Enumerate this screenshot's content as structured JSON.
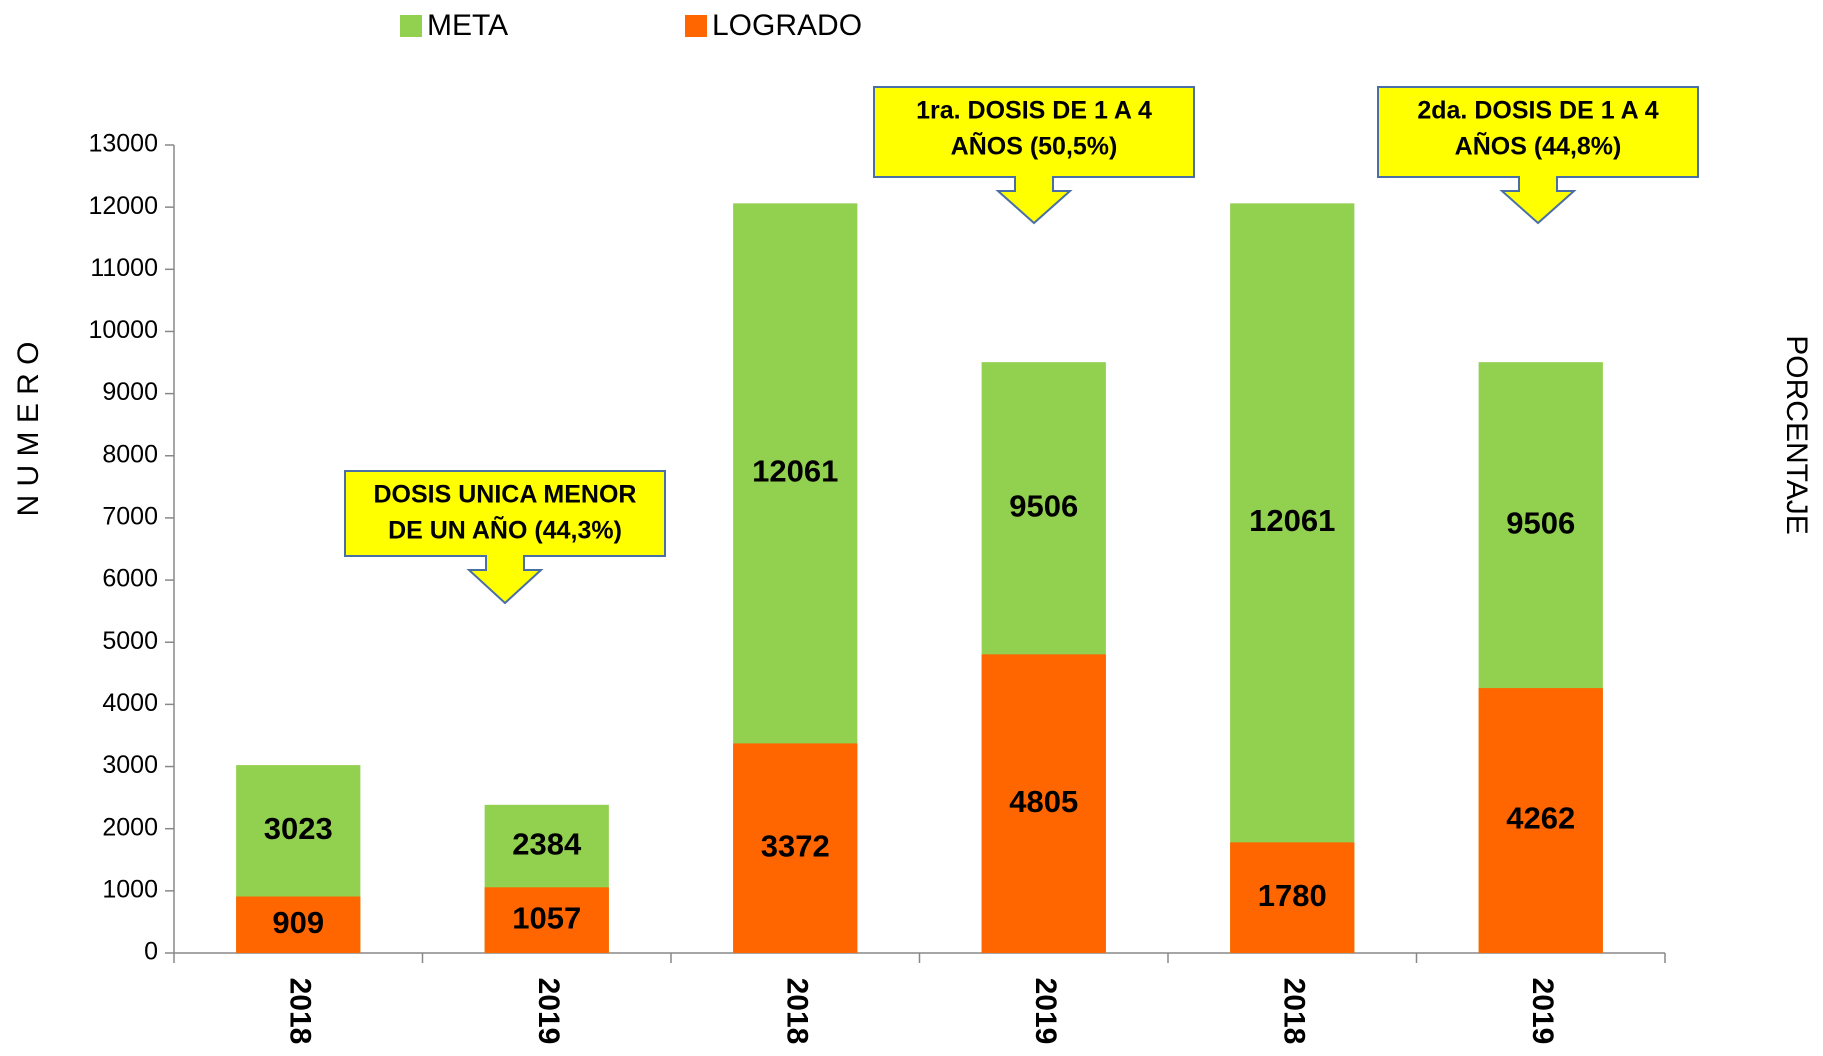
{
  "chart_data": {
    "type": "bar",
    "categories": [
      "2018",
      "2019",
      "2018",
      "2019",
      "2018",
      "2019"
    ],
    "series": [
      {
        "name": "META",
        "color": "#92d050",
        "values": [
          3023,
          2384,
          12061,
          9506,
          12061,
          9506
        ]
      },
      {
        "name": "LOGRADO",
        "color": "#ff6600",
        "values": [
          909,
          1057,
          3372,
          4805,
          1780,
          4262
        ]
      }
    ],
    "ylabel": "N U M E R O",
    "y2label": "PORCENTAJE",
    "ylim": [
      0,
      13000
    ],
    "yticks": [
      0,
      1000,
      2000,
      3000,
      4000,
      5000,
      6000,
      7000,
      8000,
      9000,
      10000,
      11000,
      12000,
      13000
    ],
    "legend": "top",
    "overlap": true,
    "annotations": [
      [
        "DOSIS UNICA MENOR",
        "DE UN AÑO (44,3%)"
      ],
      [
        "1ra. DOSIS DE 1 A 4",
        "AÑOS (50,5%)"
      ],
      [
        "2da. DOSIS DE 1 A 4",
        "AÑOS (44,8%)"
      ]
    ]
  }
}
